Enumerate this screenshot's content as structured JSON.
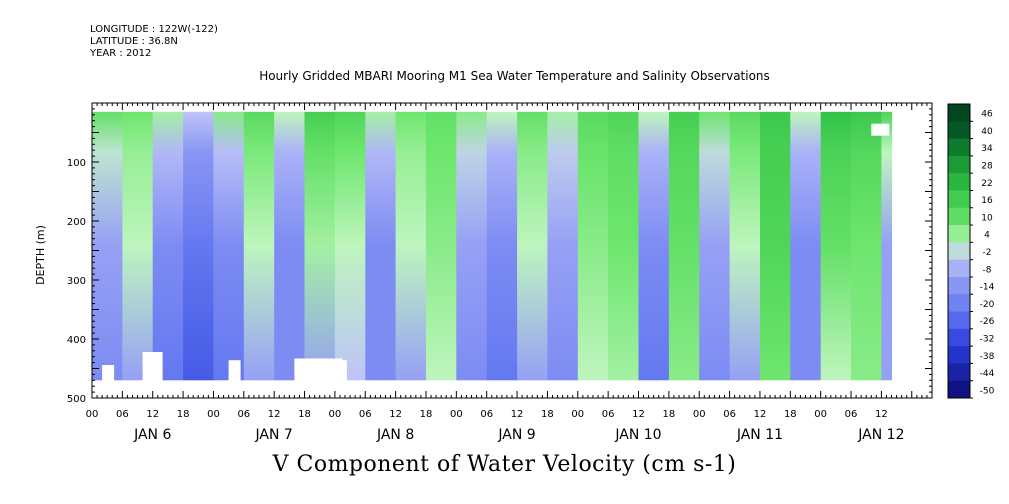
{
  "header": {
    "longitude": "LONGITUDE : 122W(-122)",
    "latitude": "LATITUDE : 36.8N",
    "year": "YEAR : 2012"
  },
  "chart_data": {
    "type": "heatmap",
    "title": "Hourly Gridded MBARI Mooring M1 Sea Water Temperature and Salinity Observations",
    "bottom_title": "V Component of Water Velocity (cm s-1)",
    "ylabel": "DEPTH (m)",
    "xlabel": "",
    "ylim": [
      500,
      0
    ],
    "y_ticks": [
      100,
      200,
      300,
      400,
      500
    ],
    "x_hour_ticks": [
      "00",
      "06",
      "12",
      "18",
      "00",
      "06",
      "12",
      "18",
      "00",
      "06",
      "12",
      "18",
      "00",
      "06",
      "12",
      "18",
      "00",
      "06",
      "12",
      "18",
      "00",
      "06",
      "12",
      "18",
      "00",
      "06",
      "12"
    ],
    "x_day_labels": [
      "JAN  6",
      "JAN  7",
      "JAN  8",
      "JAN  9",
      "JAN 10",
      "JAN 11",
      "JAN 12"
    ],
    "xlim_hours": [
      0,
      166
    ],
    "data_hours": [
      0,
      158
    ],
    "colorbar": {
      "levels": [
        -50,
        -44,
        -38,
        -32,
        -26,
        -20,
        -14,
        -8,
        -2,
        4,
        10,
        16,
        22,
        28,
        34,
        40,
        46
      ],
      "labels": [
        "46",
        "40",
        "34",
        "28",
        "22",
        "16",
        "10",
        "4",
        "-2",
        "-8",
        "-14",
        "-20",
        "-26",
        "-32",
        "-38",
        "-44",
        "-50"
      ]
    },
    "columns": [
      {
        "hour": 0,
        "v_top": 12,
        "v_mid": -8,
        "v_bot": -14
      },
      {
        "hour": 6,
        "v_top": 10,
        "v_mid": 4,
        "v_bot": -8
      },
      {
        "hour": 12,
        "v_top": 6,
        "v_mid": -14,
        "v_bot": -20
      },
      {
        "hour": 18,
        "v_top": -2,
        "v_mid": -20,
        "v_bot": -26
      },
      {
        "hour": 24,
        "v_top": 8,
        "v_mid": -14,
        "v_bot": -20
      },
      {
        "hour": 30,
        "v_top": 14,
        "v_mid": 4,
        "v_bot": -8
      },
      {
        "hour": 36,
        "v_top": 4,
        "v_mid": -14,
        "v_bot": -14
      },
      {
        "hour": 42,
        "v_top": 18,
        "v_mid": 6,
        "v_bot": -8
      },
      {
        "hour": 48,
        "v_top": 16,
        "v_mid": 4,
        "v_bot": -2
      },
      {
        "hour": 54,
        "v_top": 6,
        "v_mid": -14,
        "v_bot": -14
      },
      {
        "hour": 60,
        "v_top": 10,
        "v_mid": 4,
        "v_bot": -8
      },
      {
        "hour": 66,
        "v_top": 12,
        "v_mid": 8,
        "v_bot": 4
      },
      {
        "hour": 72,
        "v_top": 8,
        "v_mid": -8,
        "v_bot": -14
      },
      {
        "hour": 78,
        "v_top": 4,
        "v_mid": -14,
        "v_bot": -20
      },
      {
        "hour": 84,
        "v_top": 12,
        "v_mid": 4,
        "v_bot": -8
      },
      {
        "hour": 90,
        "v_top": 6,
        "v_mid": -8,
        "v_bot": -14
      },
      {
        "hour": 96,
        "v_top": 14,
        "v_mid": 8,
        "v_bot": 4
      },
      {
        "hour": 102,
        "v_top": 16,
        "v_mid": 10,
        "v_bot": 6
      },
      {
        "hour": 108,
        "v_top": 4,
        "v_mid": -14,
        "v_bot": -20
      },
      {
        "hour": 114,
        "v_top": 18,
        "v_mid": 12,
        "v_bot": 8
      },
      {
        "hour": 120,
        "v_top": 10,
        "v_mid": -8,
        "v_bot": -14
      },
      {
        "hour": 126,
        "v_top": 14,
        "v_mid": 4,
        "v_bot": -8
      },
      {
        "hour": 132,
        "v_top": 20,
        "v_mid": 16,
        "v_bot": 10
      },
      {
        "hour": 138,
        "v_top": 4,
        "v_mid": -14,
        "v_bot": -14
      },
      {
        "hour": 144,
        "v_top": 22,
        "v_mid": 12,
        "v_bot": 4
      },
      {
        "hour": 150,
        "v_top": 20,
        "v_mid": 10,
        "v_bot": 8
      },
      {
        "hour": 156,
        "v_top": 16,
        "v_mid": -8,
        "v_bot": -8
      }
    ]
  }
}
